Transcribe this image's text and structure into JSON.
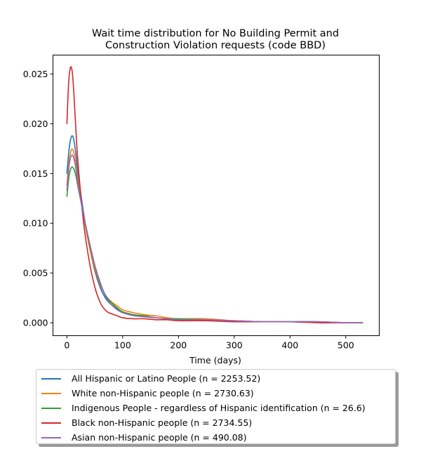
{
  "chart_data": {
    "type": "line",
    "title_lines": [
      "Wait time distribution  for No Building Permit and",
      "Construction Violation  requests (code BBD)"
    ],
    "xlabel": "Time (days)",
    "ylabel": "",
    "xlim": [
      -25,
      560
    ],
    "ylim": [
      -0.0013,
      0.0269
    ],
    "xticks": [
      0,
      100,
      200,
      300,
      400,
      500
    ],
    "yticks": [
      0.0,
      0.005,
      0.01,
      0.015,
      0.02,
      0.025
    ],
    "ytick_labels": [
      "0.000",
      "0.005",
      "0.010",
      "0.015",
      "0.020",
      "0.025"
    ],
    "xtick_labels": [
      "0",
      "100",
      "200",
      "300",
      "400",
      "500"
    ],
    "grid": false,
    "legend_position": "below",
    "series": [
      {
        "name": "All Hispanic or Latino People (n = 2253.52)",
        "color": "#1f77b4",
        "x": [
          0,
          4,
          8,
          12,
          16,
          20,
          30,
          40,
          50,
          60,
          70,
          80,
          90,
          100,
          120,
          140,
          160,
          180,
          200,
          250,
          300,
          350,
          400,
          450,
          500,
          530
        ],
        "y": [
          0.015,
          0.0175,
          0.0187,
          0.0185,
          0.017,
          0.015,
          0.011,
          0.0078,
          0.0052,
          0.0035,
          0.0024,
          0.0018,
          0.0014,
          0.0011,
          0.0008,
          0.0006,
          0.0005,
          0.0004,
          0.0003,
          0.0003,
          0.0002,
          0.0001,
          0.0001,
          0.0001,
          0.0,
          0.0
        ]
      },
      {
        "name": "White non-Hispanic people (n = 2730.63)",
        "color": "#ff7f0e",
        "x": [
          0,
          4,
          8,
          12,
          16,
          20,
          30,
          40,
          50,
          60,
          70,
          80,
          90,
          100,
          120,
          140,
          160,
          180,
          200,
          250,
          300,
          350,
          400,
          450,
          500,
          530
        ],
        "y": [
          0.0138,
          0.0163,
          0.0174,
          0.0172,
          0.016,
          0.0142,
          0.0106,
          0.0077,
          0.0054,
          0.0038,
          0.0027,
          0.0021,
          0.0017,
          0.0013,
          0.001,
          0.0008,
          0.0007,
          0.0005,
          0.0004,
          0.0004,
          0.0002,
          0.0001,
          0.0001,
          0.0001,
          0.0,
          0.0
        ]
      },
      {
        "name": "Indigenous People - regardless of Hispanic identification (n = 26.6)",
        "color": "#2ca02c",
        "x": [
          0,
          4,
          8,
          12,
          16,
          20,
          30,
          40,
          50,
          60,
          70,
          80,
          90,
          100,
          120,
          140,
          160,
          180,
          200,
          250,
          300,
          350,
          400,
          450,
          500,
          530
        ],
        "y": [
          0.0127,
          0.0148,
          0.0156,
          0.0155,
          0.0148,
          0.0136,
          0.0108,
          0.008,
          0.0057,
          0.0039,
          0.0027,
          0.002,
          0.0015,
          0.0011,
          0.0008,
          0.0007,
          0.0005,
          0.0004,
          0.0004,
          0.0003,
          0.0002,
          0.0001,
          0.0001,
          0.0001,
          0.0,
          0.0
        ]
      },
      {
        "name": "Black non-Hispanic people (n = 2734.55)",
        "color": "#d62728",
        "x": [
          0,
          3,
          6,
          9,
          12,
          15,
          20,
          30,
          40,
          50,
          60,
          70,
          80,
          90,
          100,
          120,
          140,
          160,
          180,
          200,
          250,
          300,
          350,
          400,
          450,
          500,
          530
        ],
        "y": [
          0.02,
          0.024,
          0.0256,
          0.0254,
          0.0235,
          0.0205,
          0.016,
          0.01,
          0.0062,
          0.0036,
          0.002,
          0.0012,
          0.0009,
          0.0007,
          0.0005,
          0.0004,
          0.0004,
          0.0003,
          0.0003,
          0.0002,
          0.0002,
          0.0001,
          0.0001,
          0.0001,
          0.0,
          0.0,
          0.0
        ]
      },
      {
        "name": "Asian non-Hispanic people (n = 490.08)",
        "color": "#9467bd",
        "x": [
          0,
          4,
          8,
          12,
          16,
          20,
          30,
          40,
          50,
          60,
          70,
          80,
          90,
          100,
          120,
          140,
          160,
          180,
          200,
          250,
          300,
          350,
          400,
          450,
          500,
          530
        ],
        "y": [
          0.0133,
          0.0158,
          0.0168,
          0.0166,
          0.0155,
          0.0139,
          0.0108,
          0.0082,
          0.0058,
          0.004,
          0.0026,
          0.0018,
          0.0013,
          0.001,
          0.0007,
          0.0006,
          0.0005,
          0.0004,
          0.0003,
          0.0003,
          0.0002,
          0.0001,
          0.0001,
          0.0001,
          0.0,
          0.0
        ]
      }
    ]
  }
}
